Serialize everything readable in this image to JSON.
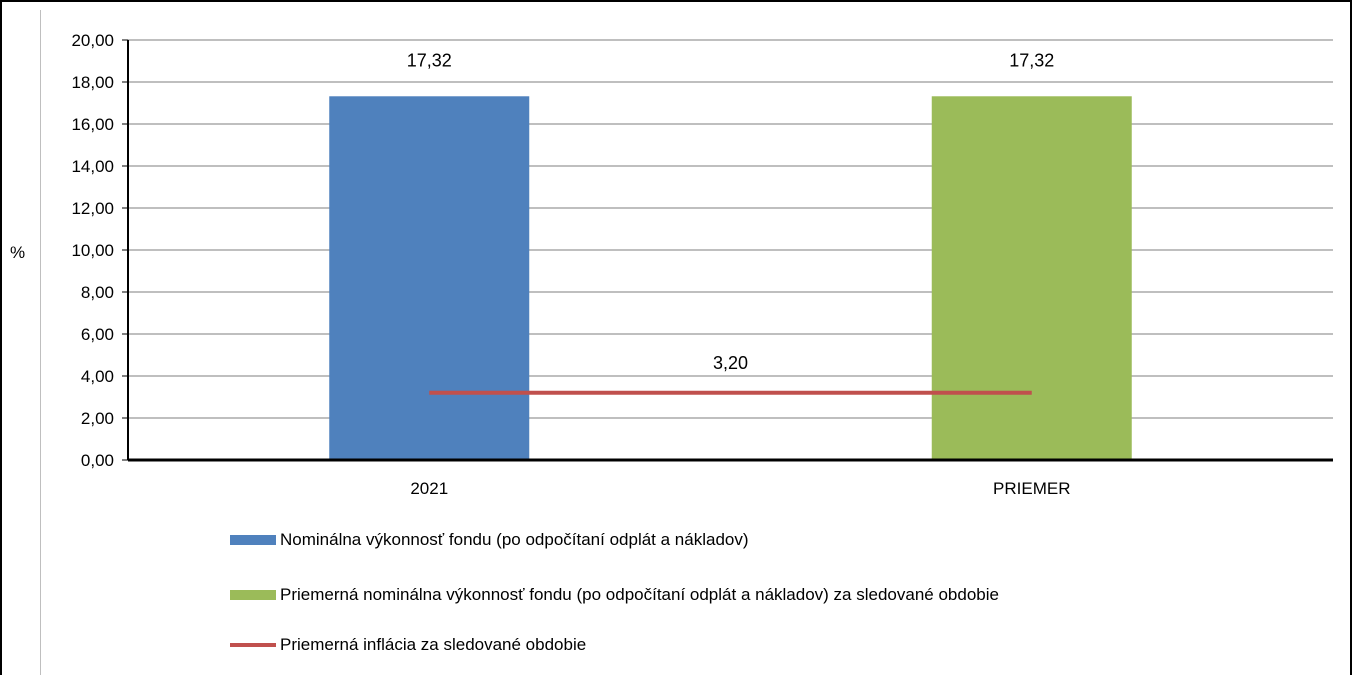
{
  "chart_data": {
    "type": "bar",
    "categories": [
      "2021",
      "PRIEMER"
    ],
    "series": [
      {
        "name": "Nominálna výkonnosť fondu (po odpočítaní odplát a nákladov)",
        "values": [
          17.32,
          null
        ],
        "color": "#4f81bd",
        "kind": "bar"
      },
      {
        "name": "Priemerná nominálna výkonnosť fondu (po odpočítaní odplát a nákladov) za sledované obdobie",
        "values": [
          null,
          17.32
        ],
        "color": "#9bbb59",
        "kind": "bar"
      },
      {
        "name": "Priemerná inflácia za sledované obdobie",
        "values": [
          3.2,
          3.2
        ],
        "color": "#c0504d",
        "kind": "line"
      }
    ],
    "data_labels": [
      "17,32",
      "17,32",
      "3,20"
    ],
    "ylabel": "%",
    "ylim": [
      0,
      20
    ],
    "yticks": [
      "0,00",
      "2,00",
      "4,00",
      "6,00",
      "8,00",
      "10,00",
      "12,00",
      "14,00",
      "16,00",
      "18,00",
      "20,00"
    ],
    "grid": true,
    "legend_position": "bottom"
  }
}
